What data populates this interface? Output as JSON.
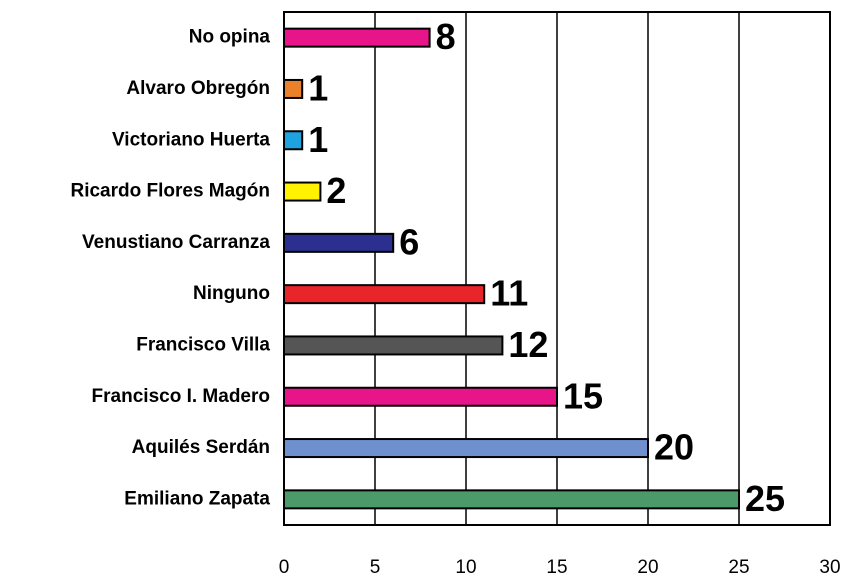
{
  "chart_data": {
    "type": "bar",
    "orientation": "horizontal",
    "categories": [
      "No opina",
      "Alvaro Obregón",
      "Victoriano Huerta",
      "Ricardo Flores Magón",
      "Venustiano Carranza",
      "Ninguno",
      "Francisco Villa",
      "Francisco I. Madero",
      "Aquilés Serdán",
      "Emiliano Zapata"
    ],
    "values": [
      8,
      1,
      1,
      2,
      6,
      11,
      12,
      15,
      20,
      25
    ],
    "colors": [
      "#e8158a",
      "#e8812a",
      "#1fa3e0",
      "#fff200",
      "#2b3090",
      "#e8262a",
      "#555555",
      "#e8158a",
      "#6f8fcf",
      "#4a9a6a"
    ],
    "xlim": [
      0,
      30
    ],
    "xticks": [
      0,
      5,
      10,
      15,
      20,
      25,
      30
    ],
    "grid": true
  }
}
